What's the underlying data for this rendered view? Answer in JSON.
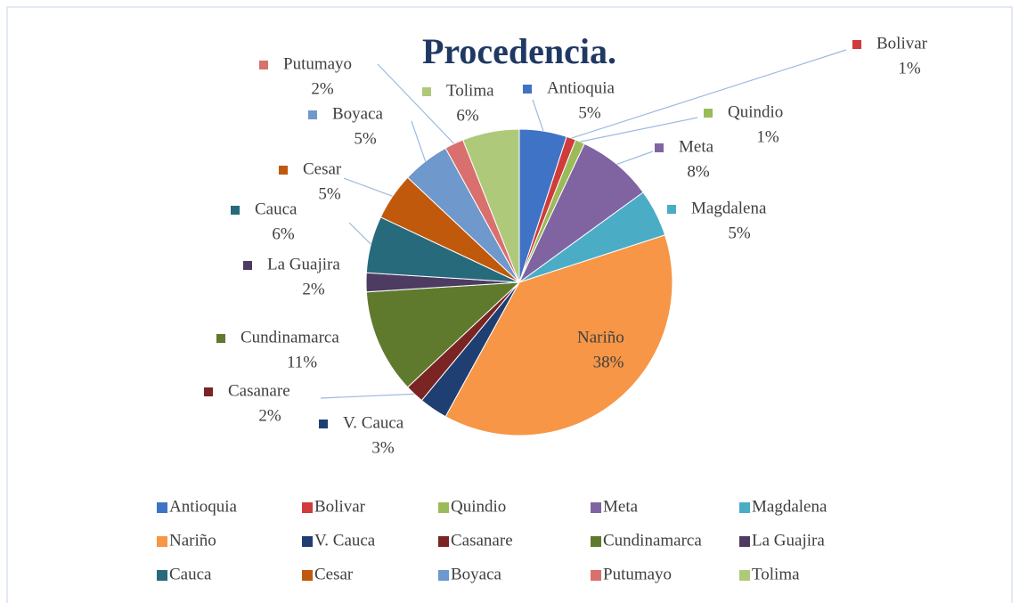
{
  "chart_data": {
    "type": "pie",
    "title": "Procedencia.",
    "categories": [
      "Antioquia",
      "Bolivar",
      "Quindio",
      "Meta",
      "Magdalena",
      "Nariño",
      "V. Cauca",
      "Casanare",
      "Cundinamarca",
      "La Guajira",
      "Cauca",
      "Cesar",
      "Boyaca",
      "Putumayo",
      "Tolima"
    ],
    "values": [
      5,
      1,
      1,
      8,
      5,
      38,
      3,
      2,
      11,
      2,
      6,
      5,
      5,
      2,
      6
    ],
    "value_labels": [
      "5%",
      "1%",
      "1%",
      "8%",
      "5%",
      "38%",
      "3%",
      "2%",
      "11%",
      "2%",
      "6%",
      "5%",
      "5%",
      "2%",
      "6%"
    ],
    "colors": [
      "#3f73c5",
      "#d03b3b",
      "#9bbb59",
      "#8064a2",
      "#4bacc6",
      "#f79646",
      "#1f3f73",
      "#7a2424",
      "#5f7a2c",
      "#4d3b62",
      "#276a7c",
      "#c0590c",
      "#6f98cc",
      "#d9706e",
      "#afc97a"
    ],
    "legend": "bottom"
  }
}
